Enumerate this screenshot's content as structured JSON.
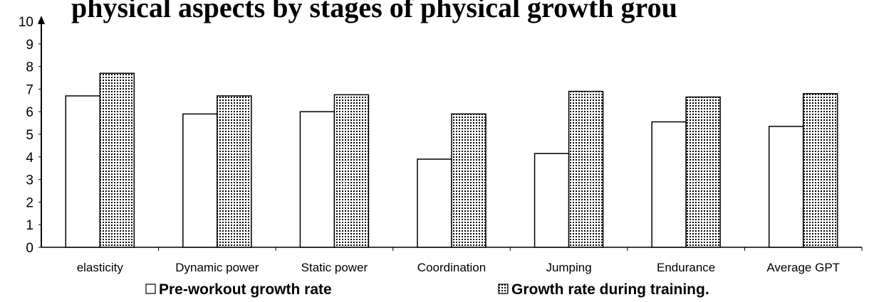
{
  "header_fragment": "physical aspects by stages of physical growth grou",
  "chart_data": {
    "type": "bar",
    "categories": [
      "elasticity",
      "Dynamic power",
      "Static power",
      "Coordination",
      "Jumping",
      "Endurance",
      "Average GPT"
    ],
    "series": [
      {
        "name": "Pre-workout growth rate",
        "values": [
          6.7,
          5.9,
          6.0,
          3.9,
          4.15,
          5.55,
          5.35
        ],
        "fill": "#ffffff",
        "pattern": "none"
      },
      {
        "name": "Growth rate during training.",
        "values": [
          7.7,
          6.7,
          6.75,
          5.9,
          6.9,
          6.65,
          6.8
        ],
        "fill": "#ffffff",
        "pattern": "dots"
      }
    ],
    "ylim": [
      0,
      10
    ],
    "yticks": [
      0,
      1,
      2,
      3,
      4,
      5,
      6,
      7,
      8,
      9,
      10
    ],
    "title": "",
    "xlabel": "",
    "ylabel": "",
    "grid": false,
    "legend": "bottom"
  }
}
